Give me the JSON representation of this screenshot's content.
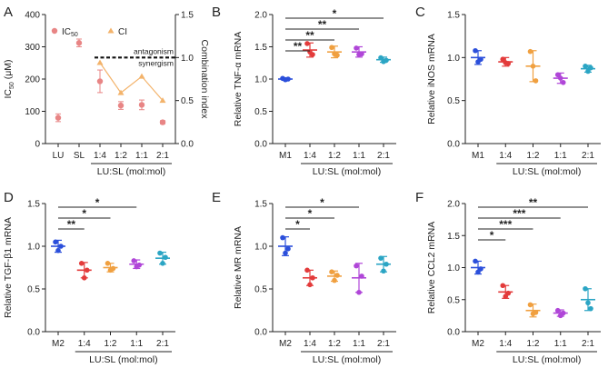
{
  "figure": {
    "panels": [
      {
        "id": "A",
        "letter": "A",
        "type": "dual-axis-scatter-line",
        "categories": [
          "LU",
          "SL",
          "1:4",
          "1:2",
          "1:1",
          "2:1"
        ],
        "group_label": "LU:SL (mol:mol)",
        "ylabel": "IC50 (μM)",
        "ylabel_main": "IC",
        "ylabel_sub": "50",
        "ylabel_unit": "(μM)",
        "ylim": [
          0,
          400
        ],
        "yticks": [
          0,
          100,
          200,
          300,
          400
        ],
        "y2label": "Combination index",
        "y2lim": [
          0,
          1.5
        ],
        "y2ticks": [
          "0.0",
          "0.5",
          "1.0",
          "1.5"
        ],
        "ic50": {
          "legend": "IC50",
          "legend_main": "IC",
          "legend_sub": "50",
          "color": "#e88585",
          "values": [
            80,
            312,
            193,
            118,
            120,
            66
          ],
          "errors": [
            12,
            12,
            35,
            12,
            15,
            5
          ]
        },
        "ci": {
          "legend": "CI",
          "color": "#f3b36b",
          "values": [
            null,
            null,
            0.94,
            0.59,
            0.78,
            0.5
          ]
        },
        "threshold": 1.0,
        "annot_above": "antagonism",
        "annot_below": "synergism"
      },
      {
        "id": "B",
        "letter": "B",
        "ylabel": "Relative TNF-α mRNA",
        "categories": [
          "M1",
          "1:4",
          "1:2",
          "1:1",
          "2:1"
        ],
        "group_label": "LU:SL (mol:mol)",
        "ylim": [
          0,
          2.0
        ],
        "yticks": [
          "0.0",
          "0.5",
          "1.0",
          "1.5",
          "2.0"
        ],
        "colors": [
          "#2b4fdb",
          "#e33b3b",
          "#f0a040",
          "#b046d8",
          "#2ba5c4"
        ],
        "means": [
          1.0,
          1.45,
          1.42,
          1.42,
          1.3
        ],
        "sd": [
          0.02,
          0.11,
          0.09,
          0.08,
          0.04
        ],
        "points": [
          [
            1.01,
            0.99,
            1.0
          ],
          [
            1.55,
            1.42,
            1.38
          ],
          [
            1.49,
            1.39,
            1.37
          ],
          [
            1.48,
            1.38,
            1.39
          ],
          [
            1.33,
            1.27,
            1.29
          ]
        ],
        "sig": [
          {
            "label": "*",
            "to": 4
          },
          {
            "label": "**",
            "to": 3
          },
          {
            "label": "**",
            "to": 2
          },
          {
            "label": "**",
            "to": 1
          }
        ]
      },
      {
        "id": "C",
        "letter": "C",
        "ylabel": "Relative iNOS mRNA",
        "categories": [
          "M1",
          "1:4",
          "1:2",
          "1:1",
          "2:1"
        ],
        "group_label": "LU:SL (mol:mol)",
        "ylim": [
          0,
          1.5
        ],
        "yticks": [
          "0.0",
          "0.5",
          "1.0",
          "1.5"
        ],
        "colors": [
          "#2b4fdb",
          "#e33b3b",
          "#f0a040",
          "#b046d8",
          "#2ba5c4"
        ],
        "means": [
          1.0,
          0.95,
          0.9,
          0.76,
          0.87
        ],
        "sd": [
          0.08,
          0.05,
          0.18,
          0.06,
          0.04
        ],
        "points": [
          [
            1.08,
            0.95,
            0.98
          ],
          [
            0.98,
            0.94,
            0.93
          ],
          [
            1.07,
            0.9,
            0.73
          ],
          [
            0.8,
            0.76,
            0.71
          ],
          [
            0.9,
            0.84,
            0.88
          ]
        ],
        "sig": []
      },
      {
        "id": "D",
        "letter": "D",
        "ylabel": "Relative TGF-β1 mRNA",
        "categories": [
          "M2",
          "1:4",
          "1:2",
          "1:1",
          "2:1"
        ],
        "group_label": "LU:SL (mol:mol)",
        "ylim": [
          0,
          1.5
        ],
        "yticks": [
          "0.0",
          "0.5",
          "1.0",
          "1.5"
        ],
        "colors": [
          "#2b4fdb",
          "#e33b3b",
          "#f0a040",
          "#b046d8",
          "#2ba5c4"
        ],
        "means": [
          1.0,
          0.72,
          0.75,
          0.79,
          0.86
        ],
        "sd": [
          0.07,
          0.09,
          0.05,
          0.05,
          0.07
        ],
        "points": [
          [
            1.05,
            0.95,
            1.0
          ],
          [
            0.8,
            0.63,
            0.72
          ],
          [
            0.8,
            0.72,
            0.74
          ],
          [
            0.83,
            0.76,
            0.78
          ],
          [
            0.92,
            0.8,
            0.87
          ]
        ],
        "sig": [
          {
            "label": "*",
            "to": 3
          },
          {
            "label": "*",
            "to": 2
          },
          {
            "label": "**",
            "to": 1
          }
        ]
      },
      {
        "id": "E",
        "letter": "E",
        "ylabel": "Relative MR mRNA",
        "categories": [
          "M2",
          "1:4",
          "1:2",
          "1:1",
          "2:1"
        ],
        "group_label": "LU:SL (mol:mol)",
        "ylim": [
          0,
          1.5
        ],
        "yticks": [
          "0.0",
          "0.5",
          "1.0",
          "1.5"
        ],
        "colors": [
          "#2b4fdb",
          "#e33b3b",
          "#f0a040",
          "#b046d8",
          "#2ba5c4"
        ],
        "means": [
          1.0,
          0.63,
          0.65,
          0.63,
          0.79
        ],
        "sd": [
          0.11,
          0.09,
          0.06,
          0.17,
          0.09
        ],
        "points": [
          [
            1.1,
            0.92,
            0.97
          ],
          [
            0.72,
            0.55,
            0.63
          ],
          [
            0.7,
            0.6,
            0.66
          ],
          [
            0.77,
            0.46,
            0.65
          ],
          [
            0.86,
            0.71,
            0.79
          ]
        ],
        "sig": [
          {
            "label": "*",
            "to": 3
          },
          {
            "label": "*",
            "to": 2
          },
          {
            "label": "*",
            "to": 1
          }
        ]
      },
      {
        "id": "F",
        "letter": "F",
        "ylabel": "Relative CCL2 mRNA",
        "categories": [
          "M2",
          "1:4",
          "1:2",
          "1:1",
          "2:1"
        ],
        "group_label": "LU:SL (mol:mol)",
        "ylim": [
          0,
          2.0
        ],
        "yticks": [
          "0.0",
          "0.5",
          "1.0",
          "1.5",
          "2.0"
        ],
        "colors": [
          "#2b4fdb",
          "#e33b3b",
          "#f0a040",
          "#b046d8",
          "#2ba5c4"
        ],
        "means": [
          1.0,
          0.62,
          0.33,
          0.29,
          0.5
        ],
        "sd": [
          0.1,
          0.1,
          0.1,
          0.05,
          0.17
        ],
        "points": [
          [
            1.1,
            0.93,
            0.98
          ],
          [
            0.72,
            0.55,
            0.6
          ],
          [
            0.42,
            0.28,
            0.3
          ],
          [
            0.33,
            0.25,
            0.29
          ],
          [
            0.67,
            0.45,
            0.36
          ]
        ],
        "sig": [
          {
            "label": "**",
            "to": 4
          },
          {
            "label": "***",
            "to": 3
          },
          {
            "label": "***",
            "to": 2
          },
          {
            "label": "*",
            "to": 1
          }
        ]
      }
    ]
  },
  "chart_data": [
    {
      "type": "scatter",
      "title": "A",
      "categories": [
        "LU",
        "SL",
        "1:4",
        "1:2",
        "1:1",
        "2:1"
      ],
      "series": [
        {
          "name": "IC50",
          "values": [
            80,
            312,
            193,
            118,
            120,
            66
          ],
          "axis": "left"
        },
        {
          "name": "CI",
          "values": [
            null,
            null,
            0.94,
            0.59,
            0.78,
            0.5
          ],
          "axis": "right"
        }
      ],
      "ylabel": "IC50 (μM)",
      "y2label": "Combination index",
      "ylim": [
        0,
        400
      ],
      "y2lim": [
        0,
        1.5
      ]
    },
    {
      "type": "scatter",
      "title": "B",
      "categories": [
        "M1",
        "1:4",
        "1:2",
        "1:1",
        "2:1"
      ],
      "values": [
        1.0,
        1.45,
        1.42,
        1.42,
        1.3
      ],
      "ylabel": "Relative TNF-α mRNA",
      "ylim": [
        0,
        2.0
      ]
    },
    {
      "type": "scatter",
      "title": "C",
      "categories": [
        "M1",
        "1:4",
        "1:2",
        "1:1",
        "2:1"
      ],
      "values": [
        1.0,
        0.95,
        0.9,
        0.76,
        0.87
      ],
      "ylabel": "Relative iNOS mRNA",
      "ylim": [
        0,
        1.5
      ]
    },
    {
      "type": "scatter",
      "title": "D",
      "categories": [
        "M2",
        "1:4",
        "1:2",
        "1:1",
        "2:1"
      ],
      "values": [
        1.0,
        0.72,
        0.75,
        0.79,
        0.86
      ],
      "ylabel": "Relative TGF-β1 mRNA",
      "ylim": [
        0,
        1.5
      ]
    },
    {
      "type": "scatter",
      "title": "E",
      "categories": [
        "M2",
        "1:4",
        "1:2",
        "1:1",
        "2:1"
      ],
      "values": [
        1.0,
        0.63,
        0.65,
        0.63,
        0.79
      ],
      "ylabel": "Relative MR mRNA",
      "ylim": [
        0,
        1.5
      ]
    },
    {
      "type": "scatter",
      "title": "F",
      "categories": [
        "M2",
        "1:4",
        "1:2",
        "1:1",
        "2:1"
      ],
      "values": [
        1.0,
        0.62,
        0.33,
        0.29,
        0.5
      ],
      "ylabel": "Relative CCL2 mRNA",
      "ylim": [
        0,
        2.0
      ]
    }
  ]
}
